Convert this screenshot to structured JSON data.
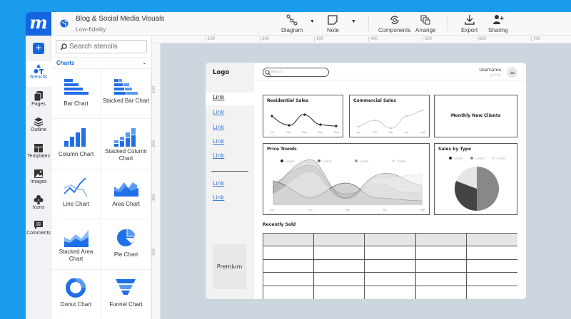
{
  "app": {
    "logo": "m",
    "title": "Blog & Social Media Visuals",
    "subtitle": "Low-fidelity",
    "accent": "#1565e0",
    "background": "#1a9bec"
  },
  "toolbar": [
    {
      "label": "Diagram",
      "icon": "diagram-icon"
    },
    {
      "label": "Note",
      "icon": "note-icon"
    },
    {
      "label": "Components",
      "icon": "components-icon"
    },
    {
      "label": "Arrange",
      "icon": "arrange-icon"
    },
    {
      "label": "Export",
      "icon": "export-icon"
    },
    {
      "label": "Sharing",
      "icon": "sharing-icon"
    }
  ],
  "rail": [
    {
      "label": "Stencils",
      "active": true
    },
    {
      "label": "Pages"
    },
    {
      "label": "Outline"
    },
    {
      "label": "Templates"
    },
    {
      "label": "Images"
    },
    {
      "label": "Icons"
    },
    {
      "label": "Comments"
    }
  ],
  "panel": {
    "search_placeholder": "Search stencils",
    "category": "Charts",
    "items": [
      "Bar Chart",
      "Stacked Bar Chart",
      "Column Chart",
      "Stacked Column Chart",
      "Line Chart",
      "Area Chart",
      "Stacked Area Chart",
      "Pie Chart",
      "Donut Chart",
      "Funnel Chart"
    ]
  },
  "rulers": {
    "h": [
      "100",
      "200",
      "300",
      "400",
      "500",
      "600",
      "700",
      "800"
    ],
    "v": [
      "100",
      "200",
      "300",
      "400"
    ]
  },
  "wireframe": {
    "logo": "Logo",
    "search_placeholder": "Search",
    "username": "Username",
    "job_title": "Job Title",
    "links": [
      "Link",
      "Link",
      "Link",
      "Link",
      "Link",
      "Link",
      "Link"
    ],
    "premium": "Premium",
    "residential": {
      "title": "Residential Sales",
      "months": [
        "Jan",
        "Feb",
        "Mar",
        "Apr",
        "May"
      ]
    },
    "commercial": {
      "title": "Commercial Sales",
      "months": [
        "Jan",
        "Feb",
        "Mar",
        "Apr",
        "May"
      ]
    },
    "monthly": "Monthly New Clients",
    "price": {
      "title": "Price Trends",
      "legend": [
        "Lorem",
        "Lorem",
        "Lorem",
        "Lorem"
      ],
      "months": [
        "Jan",
        "Feb",
        "Mar",
        "Apr",
        "May"
      ]
    },
    "salesType": {
      "title": "Sales by Type",
      "legend": [
        "Lorem",
        "Lorem",
        "Lorem"
      ]
    },
    "recent": "Recently Sold"
  }
}
